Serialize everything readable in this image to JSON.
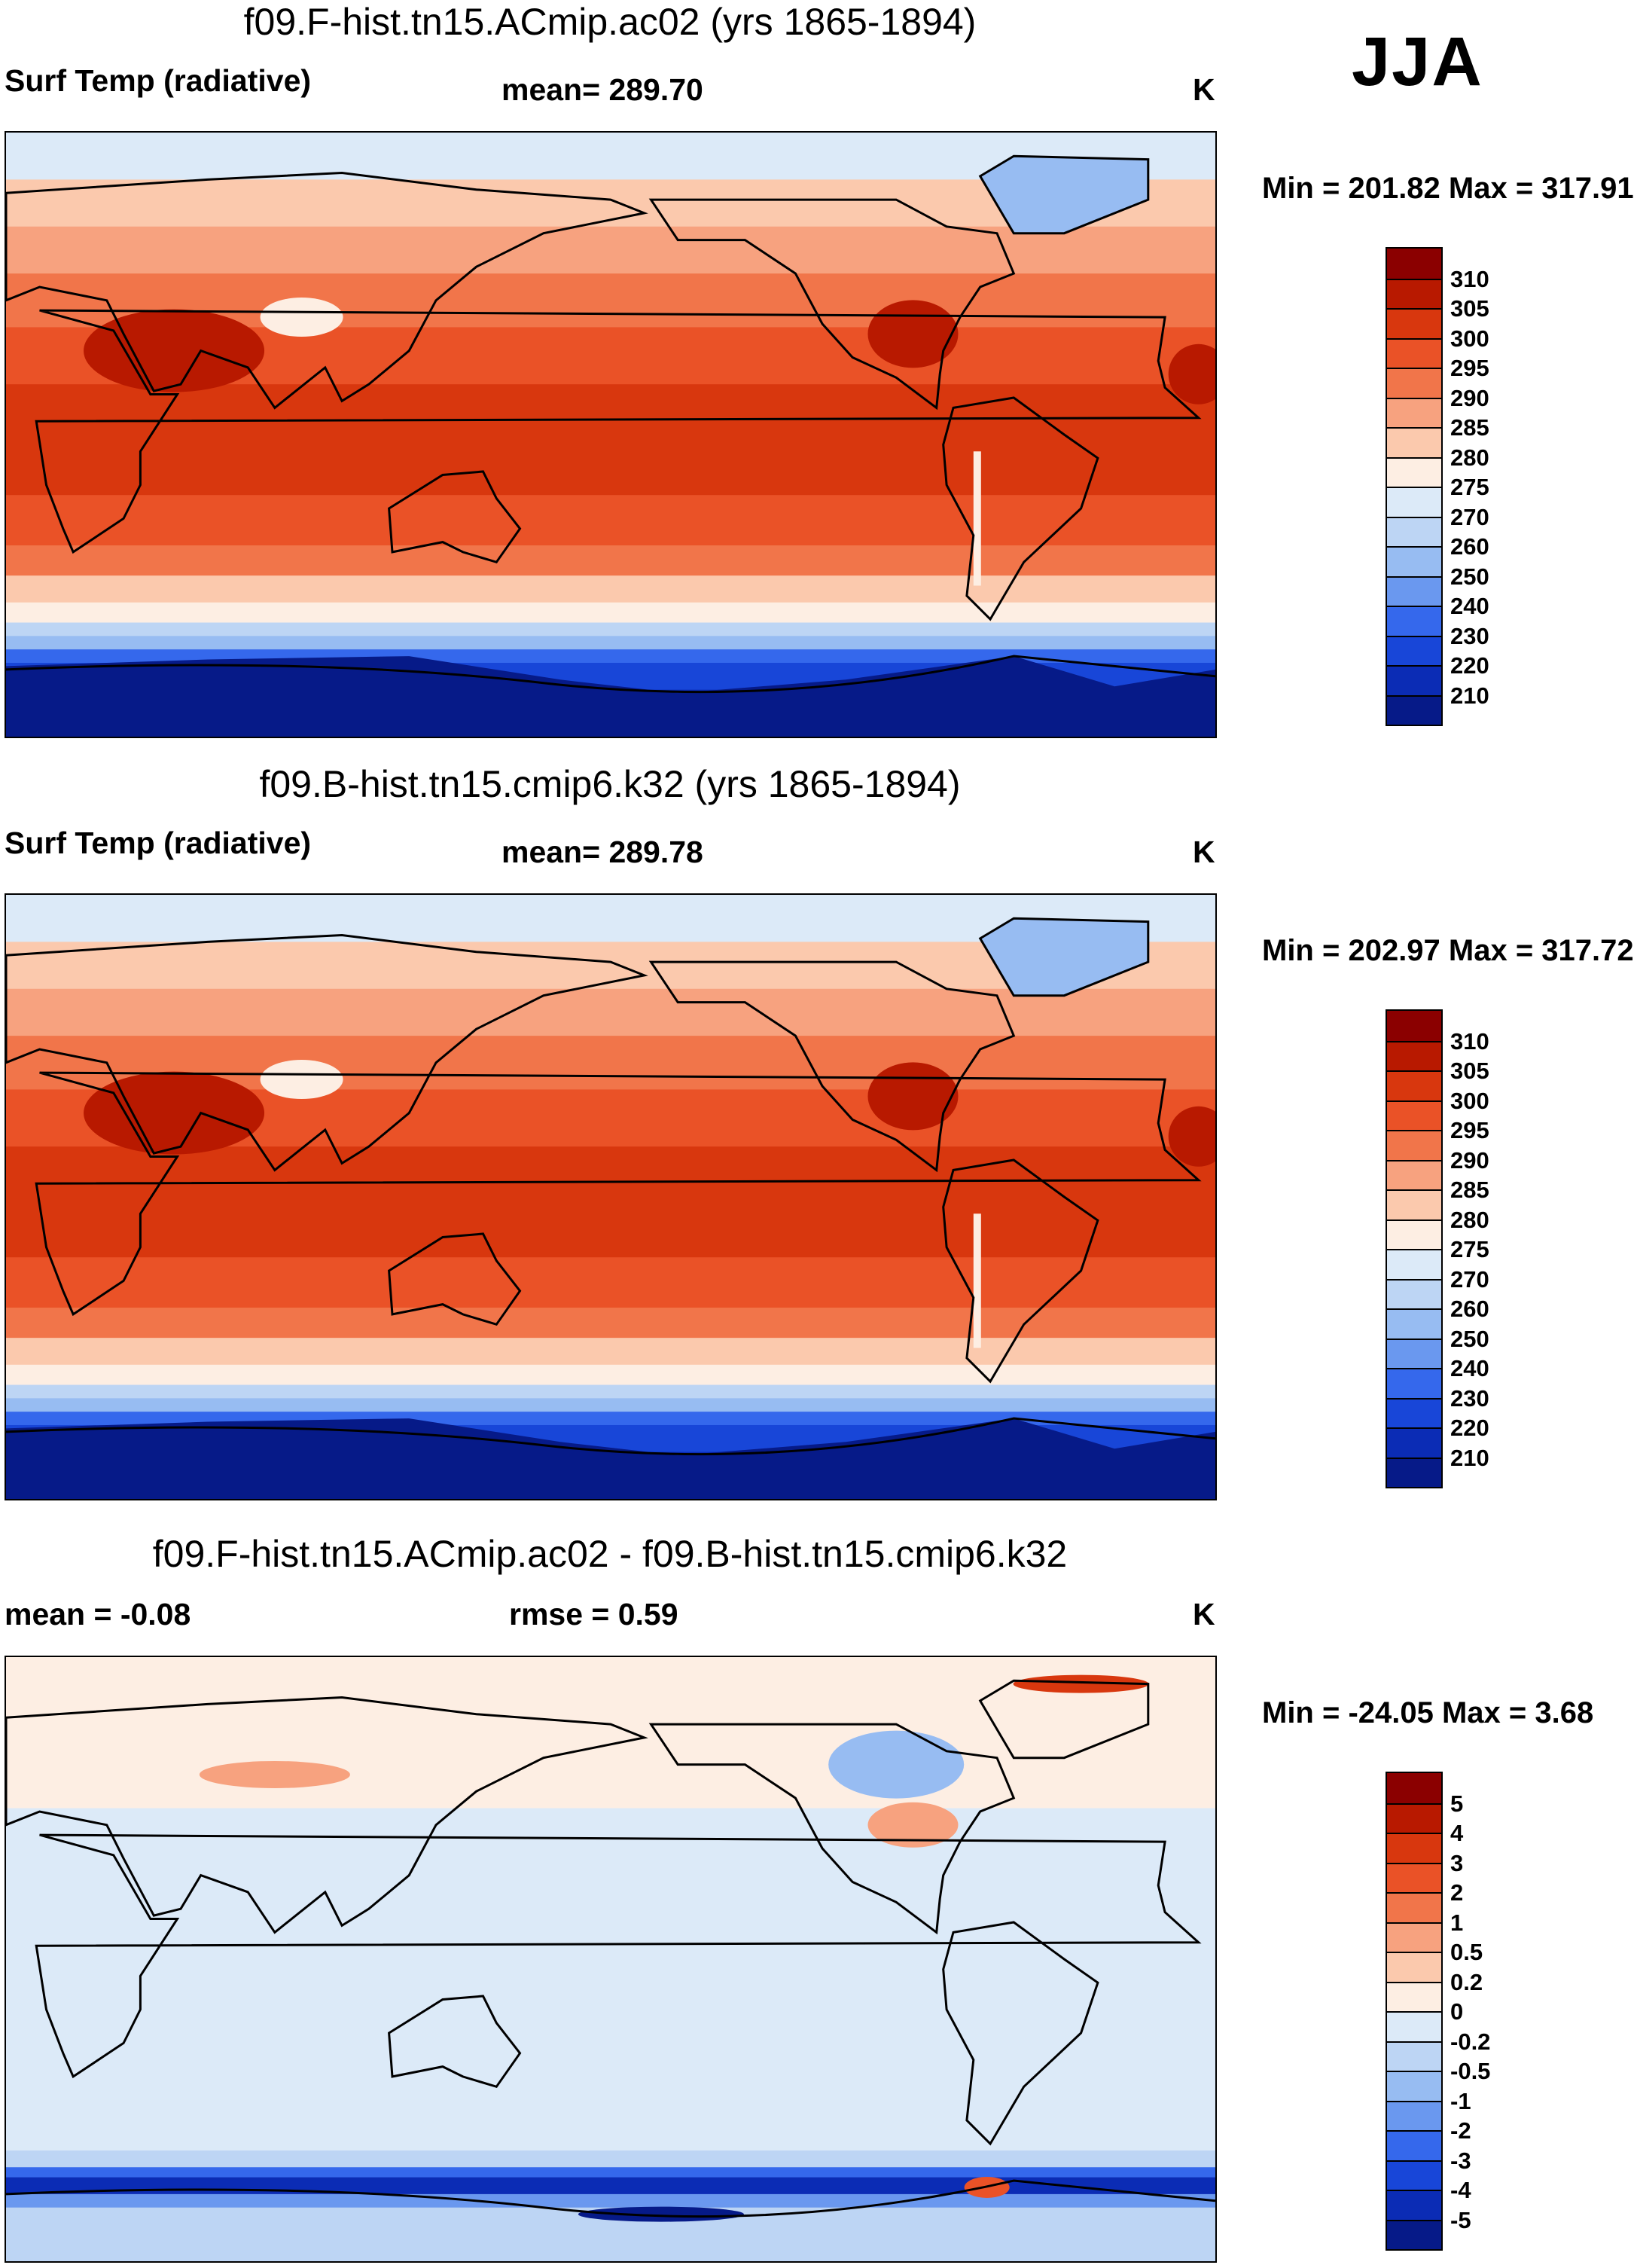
{
  "season": "JJA",
  "units": "K",
  "panels": [
    {
      "title": "f09.F-hist.tn15.ACmip.ac02 (yrs 1865-1894)",
      "variable": "Surf Temp (radiative)",
      "stat_text": "mean= 289.70",
      "units": "K",
      "minmax": "Min = 201.82 Max = 317.91",
      "colorbar_levels": [
        "310",
        "305",
        "300",
        "295",
        "290",
        "285",
        "280",
        "275",
        "270",
        "260",
        "250",
        "240",
        "230",
        "220",
        "210"
      ],
      "colorbar_colors": [
        "#8b0000",
        "#b81900",
        "#d8370e",
        "#ea5227",
        "#f1754a",
        "#f7a27f",
        "#fbc9ad",
        "#fdeee3",
        "#dceaf8",
        "#bdd5f4",
        "#97bcf2",
        "#6a98ef",
        "#3568ec",
        "#1846d8",
        "#0b2cb5",
        "#061a88"
      ]
    },
    {
      "title": "f09.B-hist.tn15.cmip6.k32 (yrs 1865-1894)",
      "variable": "Surf Temp (radiative)",
      "stat_text": "mean= 289.78",
      "units": "K",
      "minmax": "Min = 202.97 Max = 317.72",
      "colorbar_levels": [
        "310",
        "305",
        "300",
        "295",
        "290",
        "285",
        "280",
        "275",
        "270",
        "260",
        "250",
        "240",
        "230",
        "220",
        "210"
      ],
      "colorbar_colors": [
        "#8b0000",
        "#b81900",
        "#d8370e",
        "#ea5227",
        "#f1754a",
        "#f7a27f",
        "#fbc9ad",
        "#fdeee3",
        "#dceaf8",
        "#bdd5f4",
        "#97bcf2",
        "#6a98ef",
        "#3568ec",
        "#1846d8",
        "#0b2cb5",
        "#061a88"
      ]
    },
    {
      "title": "f09.F-hist.tn15.ACmip.ac02 - f09.B-hist.tn15.cmip6.k32",
      "variable": "mean =  -0.08",
      "stat_text": "rmse =   0.59",
      "units": "K",
      "minmax": "Min = -24.05 Max =   3.68",
      "colorbar_levels": [
        "5",
        "4",
        "3",
        "2",
        "1",
        "0.5",
        "0.2",
        "0",
        "-0.2",
        "-0.5",
        "-1",
        "-2",
        "-3",
        "-4",
        "-5"
      ],
      "colorbar_colors": [
        "#8b0000",
        "#b81900",
        "#d8370e",
        "#ea5227",
        "#f1754a",
        "#f7a27f",
        "#fbc9ad",
        "#fdeee3",
        "#dceaf8",
        "#bdd5f4",
        "#97bcf2",
        "#6a98ef",
        "#3568ec",
        "#1846d8",
        "#0b2cb5",
        "#061a88"
      ]
    }
  ],
  "chart_data": [
    {
      "type": "heatmap",
      "title": "f09.F-hist.tn15.ACmip.ac02 (yrs 1865-1894)",
      "field": "Surf Temp (radiative)",
      "season": "JJA",
      "units": "K",
      "mean": 289.7,
      "min": 201.82,
      "max": 317.91,
      "contour_levels": [
        210,
        220,
        230,
        240,
        250,
        260,
        270,
        275,
        280,
        285,
        290,
        295,
        300,
        305,
        310
      ],
      "x_range": [
        0,
        360
      ],
      "y_range": [
        -90,
        90
      ],
      "description_zones": [
        {
          "lat_band": [
            -90,
            -70
          ],
          "approx_K": 210
        },
        {
          "lat_band": [
            -70,
            -55
          ],
          "approx_K": 265
        },
        {
          "lat_band": [
            -55,
            -40
          ],
          "approx_K": 280
        },
        {
          "lat_band": [
            -40,
            -20
          ],
          "approx_K": 292
        },
        {
          "lat_band": [
            -20,
            20
          ],
          "approx_K": 300
        },
        {
          "lat_band": [
            20,
            45
          ],
          "approx_K": 297
        },
        {
          "lat_band": [
            45,
            70
          ],
          "approx_K": 287
        },
        {
          "lat_band": [
            70,
            90
          ],
          "approx_K": 272
        }
      ]
    },
    {
      "type": "heatmap",
      "title": "f09.B-hist.tn15.cmip6.k32 (yrs 1865-1894)",
      "field": "Surf Temp (radiative)",
      "season": "JJA",
      "units": "K",
      "mean": 289.78,
      "min": 202.97,
      "max": 317.72,
      "contour_levels": [
        210,
        220,
        230,
        240,
        250,
        260,
        270,
        275,
        280,
        285,
        290,
        295,
        300,
        305,
        310
      ],
      "x_range": [
        0,
        360
      ],
      "y_range": [
        -90,
        90
      ],
      "description_zones": [
        {
          "lat_band": [
            -90,
            -70
          ],
          "approx_K": 210
        },
        {
          "lat_band": [
            -70,
            -55
          ],
          "approx_K": 265
        },
        {
          "lat_band": [
            -55,
            -40
          ],
          "approx_K": 280
        },
        {
          "lat_band": [
            -40,
            -20
          ],
          "approx_K": 292
        },
        {
          "lat_band": [
            -20,
            20
          ],
          "approx_K": 300
        },
        {
          "lat_band": [
            20,
            45
          ],
          "approx_K": 297
        },
        {
          "lat_band": [
            45,
            70
          ],
          "approx_K": 287
        },
        {
          "lat_band": [
            70,
            90
          ],
          "approx_K": 272
        }
      ]
    },
    {
      "type": "heatmap",
      "title": "f09.F-hist.tn15.ACmip.ac02 - f09.B-hist.tn15.cmip6.k32",
      "field": "Surf Temp (radiative) difference",
      "season": "JJA",
      "units": "K",
      "mean": -0.08,
      "rmse": 0.59,
      "min": -24.05,
      "max": 3.68,
      "contour_levels": [
        -5,
        -4,
        -3,
        -2,
        -1,
        -0.5,
        -0.2,
        0,
        0.2,
        0.5,
        1,
        2,
        3,
        4,
        5
      ],
      "x_range": [
        0,
        360
      ],
      "y_range": [
        -90,
        90
      ],
      "description_zones": [
        {
          "lat_band": [
            -90,
            -75
          ],
          "approx_K": -1
        },
        {
          "lat_band": [
            -75,
            -65
          ],
          "approx_K": -4
        },
        {
          "lat_band": [
            -65,
            -55
          ],
          "approx_K": -0.3
        },
        {
          "lat_band": [
            -55,
            20
          ],
          "approx_K": -0.1
        },
        {
          "lat_band": [
            20,
            60
          ],
          "approx_K": 0.1
        },
        {
          "lat_band": [
            60,
            90
          ],
          "approx_K": 0.2
        }
      ]
    }
  ]
}
